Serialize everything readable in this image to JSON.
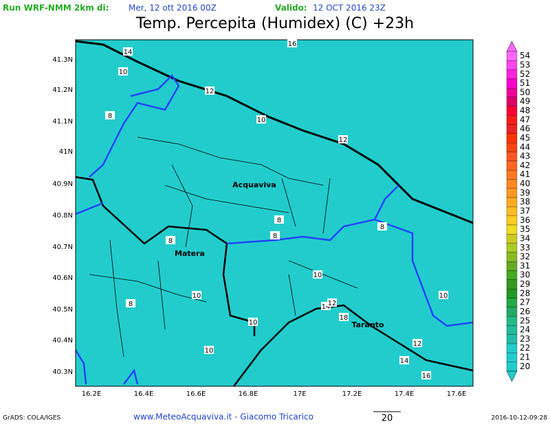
{
  "header": {
    "run_label": "Run WRF-NMM 2km di:",
    "run_date": "Mer, 12 ott 2016 00Z",
    "valid_label": "Valido:",
    "valid_date": "12 OCT 2016 23Z"
  },
  "title": "Temp. Percepita (Humidex) (C) +23h",
  "lat_labels": [
    "41.3N",
    "41.2N",
    "41.1N",
    "41N",
    "40.9N",
    "40.8N",
    "40.7N",
    "40.6N",
    "40.5N",
    "40.4N",
    "40.3N"
  ],
  "lon_labels": [
    "16.2E",
    "16.4E",
    "16.6E",
    "16.8E",
    "17E",
    "17.2E",
    "17.4E",
    "17.6E"
  ],
  "colorbar": {
    "labels": [
      54,
      53,
      52,
      51,
      50,
      49,
      48,
      47,
      46,
      45,
      44,
      43,
      42,
      41,
      40,
      39,
      38,
      37,
      36,
      35,
      34,
      33,
      32,
      31,
      30,
      29,
      28,
      27,
      26,
      25,
      24,
      23,
      22,
      21,
      20
    ],
    "colors": [
      "#ff66ff",
      "#ff44ee",
      "#ff22dd",
      "#ff00cc",
      "#ee0099",
      "#dd0066",
      "#ff0033",
      "#ff1a1a",
      "#ee2222",
      "#ff3300",
      "#ff4411",
      "#ff5522",
      "#ff6622",
      "#ff7722",
      "#ff8822",
      "#ff9922",
      "#ffaa22",
      "#ffbb22",
      "#ffcc22",
      "#eedd22",
      "#cccc22",
      "#aacc22",
      "#88bb22",
      "#66aa22",
      "#44aa22",
      "#339922",
      "#229922",
      "#22aa44",
      "#22aa66",
      "#22bb88",
      "#22bb99",
      "#22bbaa",
      "#22cccc",
      "#22cccc",
      "#22cccc"
    ]
  },
  "cities": [
    "Acquaviva",
    "Matera",
    "Taranto"
  ],
  "contour_labels": [
    "16",
    "14",
    "10",
    "12",
    "8",
    "10",
    "12",
    "8",
    "8",
    "8",
    "8",
    "10",
    "10",
    "10",
    "8",
    "14",
    "12",
    "18",
    "10",
    "12",
    "10",
    "14",
    "16"
  ],
  "footer": {
    "software": "GrADS: COLA/IGES",
    "credit": "www.MeteoAcquaviva.it - Giacomo Tricarico",
    "vector_scale": "20",
    "timestamp": "2016-10-12-09:28"
  }
}
